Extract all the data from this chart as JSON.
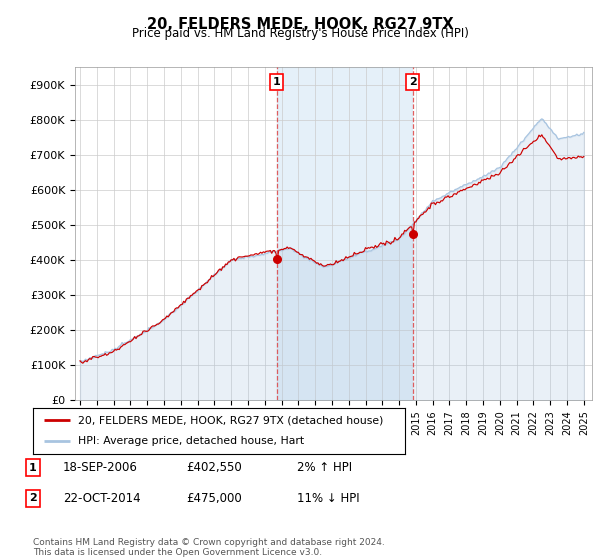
{
  "title": "20, FELDERS MEDE, HOOK, RG27 9TX",
  "subtitle": "Price paid vs. HM Land Registry's House Price Index (HPI)",
  "ytick_labels": [
    "£0",
    "£100K",
    "£200K",
    "£300K",
    "£400K",
    "£500K",
    "£600K",
    "£700K",
    "£800K",
    "£900K"
  ],
  "yticks": [
    0,
    100000,
    200000,
    300000,
    400000,
    500000,
    600000,
    700000,
    800000,
    900000
  ],
  "ylim": [
    0,
    950000
  ],
  "hpi_color": "#a8c4e0",
  "hpi_fill_color": "#daeaf7",
  "price_color": "#cc0000",
  "dashed_color": "#dd4444",
  "marker1_date": "18-SEP-2006",
  "marker1_price": 402550,
  "marker1_price_str": "£402,550",
  "marker1_hpi_pct": "2% ↑ HPI",
  "marker2_date": "22-OCT-2014",
  "marker2_price": 475000,
  "marker2_price_str": "£475,000",
  "marker2_hpi_pct": "11% ↓ HPI",
  "sale1_x": 2006.72,
  "sale2_x": 2014.81,
  "sale1_y": 402550,
  "sale2_y": 475000,
  "legend_label1": "20, FELDERS MEDE, HOOK, RG27 9TX (detached house)",
  "legend_label2": "HPI: Average price, detached house, Hart",
  "footer": "Contains HM Land Registry data © Crown copyright and database right 2024.\nThis data is licensed under the Open Government Licence v3.0.",
  "grid_color": "#cccccc",
  "plot_bg": "#ffffff",
  "xlim_left": 1994.7,
  "xlim_right": 2025.5
}
